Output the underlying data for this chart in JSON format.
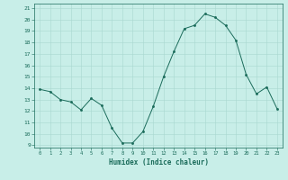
{
  "x": [
    0,
    1,
    2,
    3,
    4,
    5,
    6,
    7,
    8,
    9,
    10,
    11,
    12,
    13,
    14,
    15,
    16,
    17,
    18,
    19,
    20,
    21,
    22,
    23
  ],
  "y": [
    13.9,
    13.7,
    13.0,
    12.8,
    12.1,
    13.1,
    12.5,
    10.5,
    9.2,
    9.2,
    10.2,
    12.4,
    15.0,
    17.2,
    19.2,
    19.5,
    20.5,
    20.2,
    19.5,
    18.2,
    15.2,
    13.5,
    14.1,
    12.2
  ],
  "line_color": "#1a6b5a",
  "marker_color": "#1a6b5a",
  "bg_color": "#c8eee8",
  "grid_color": "#a8d8d0",
  "xlabel": "Humidex (Indice chaleur)",
  "ylim_min": 8.8,
  "ylim_max": 21.4,
  "xlim_min": -0.5,
  "xlim_max": 23.5,
  "yticks": [
    9,
    10,
    11,
    12,
    13,
    14,
    15,
    16,
    17,
    18,
    19,
    20,
    21
  ],
  "xticks": [
    0,
    1,
    2,
    3,
    4,
    5,
    6,
    7,
    8,
    9,
    10,
    11,
    12,
    13,
    14,
    15,
    16,
    17,
    18,
    19,
    20,
    21,
    22,
    23
  ]
}
